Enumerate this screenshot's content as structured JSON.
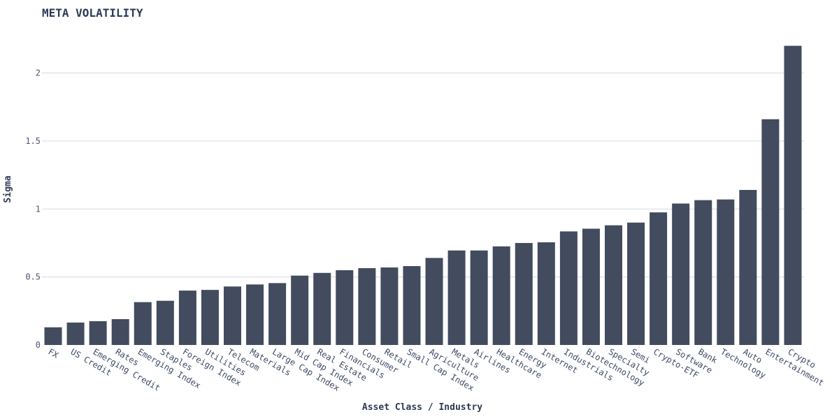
{
  "chart_data": {
    "type": "bar",
    "title": "META VOLATILITY",
    "xlabel": "Asset Class / Industry",
    "ylabel": "Sigma",
    "ylim": [
      0,
      2.28
    ],
    "yticks": [
      0,
      0.5,
      1,
      1.5,
      2
    ],
    "ytick_labels": [
      "0",
      "0.5",
      "1",
      "1.5",
      "2"
    ],
    "grid": true,
    "bar_color": "#434b5e",
    "categories": [
      "FX",
      "US Credit",
      "Emerging Credit",
      "Rates",
      "Emerging Index",
      "Staples",
      "Foreign Index",
      "Utilities",
      "Telecom",
      "Materials",
      "Large Cap Index",
      "Mid Cap Index",
      "Real Estate",
      "Financials",
      "Consumer",
      "Retail",
      "Small Cap Index",
      "Agriculture",
      "Metals",
      "Airlines",
      "Healthcare",
      "Energy",
      "Internet",
      "Industrials",
      "Biotechnology",
      "Specialty",
      "Semi",
      "Crypto-ETF",
      "Software",
      "Bank",
      "Technology",
      "Auto",
      "Entertainment",
      "Crypto"
    ],
    "values": [
      0.13,
      0.165,
      0.175,
      0.19,
      0.315,
      0.325,
      0.4,
      0.405,
      0.43,
      0.445,
      0.455,
      0.51,
      0.53,
      0.55,
      0.565,
      0.57,
      0.58,
      0.64,
      0.695,
      0.695,
      0.725,
      0.75,
      0.755,
      0.835,
      0.855,
      0.88,
      0.9,
      0.975,
      1.04,
      1.065,
      1.07,
      1.14,
      1.66,
      2.2
    ]
  }
}
